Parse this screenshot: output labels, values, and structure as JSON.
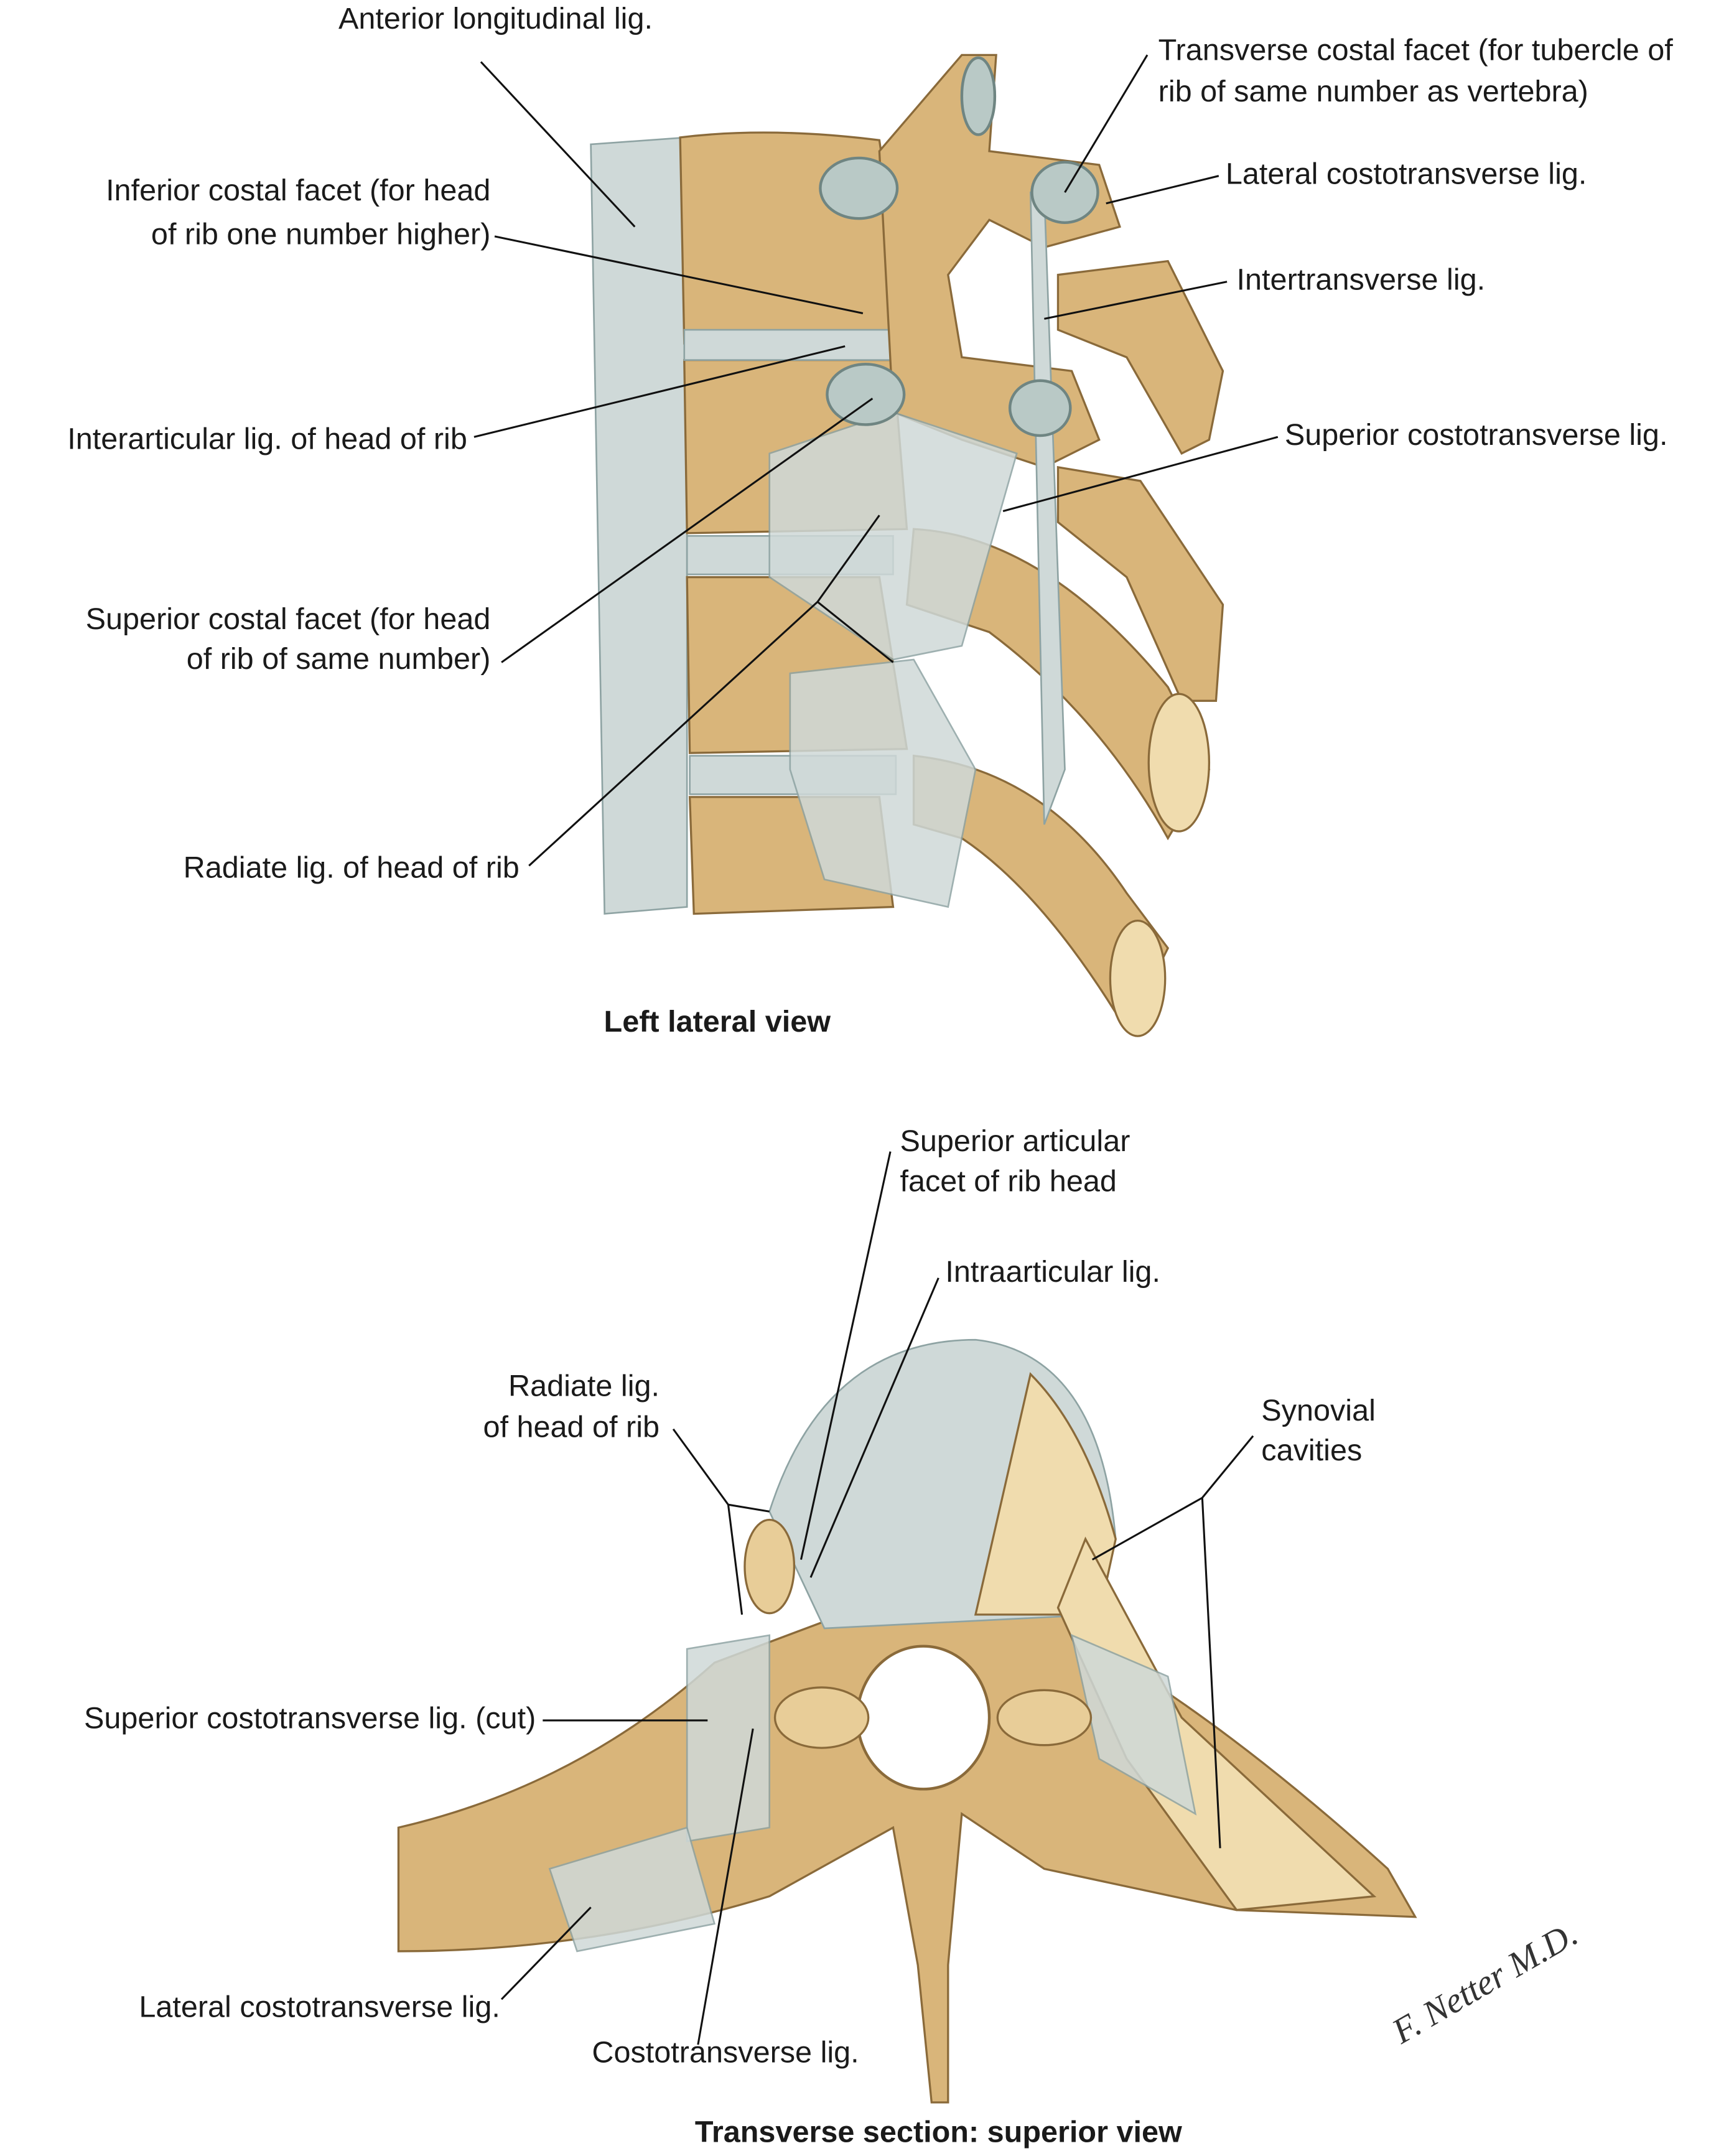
{
  "top_view": {
    "caption": "Left lateral view",
    "labels": [
      [
        "Anterior longitudinal lig."
      ],
      [
        "Transverse costal facet (for tubercle of",
        "rib of same number as vertebra)"
      ],
      [
        "Inferior costal facet (for head",
        "of rib one number higher)"
      ],
      [
        "Lateral costotransverse lig."
      ],
      [
        "Intertransverse lig."
      ],
      [
        "Interarticular lig. of head of rib"
      ],
      [
        "Superior costotransverse lig."
      ],
      [
        "Superior costal facet (for head",
        "of rib of same number)"
      ],
      [
        "Radiate lig. of head of rib"
      ]
    ]
  },
  "bottom_view": {
    "caption": "Transverse section: superior view",
    "labels": [
      [
        "Superior articular",
        "facet of rib head"
      ],
      [
        "Intraarticular lig."
      ],
      [
        "Radiate lig.",
        "of head of rib"
      ],
      [
        "Synovial",
        "cavities"
      ],
      [
        "Superior costotransverse lig. (cut)"
      ],
      [
        "Lateral costotransverse lig."
      ],
      [
        "Costotransverse lig."
      ]
    ]
  },
  "signature": "F. Netter M.D."
}
